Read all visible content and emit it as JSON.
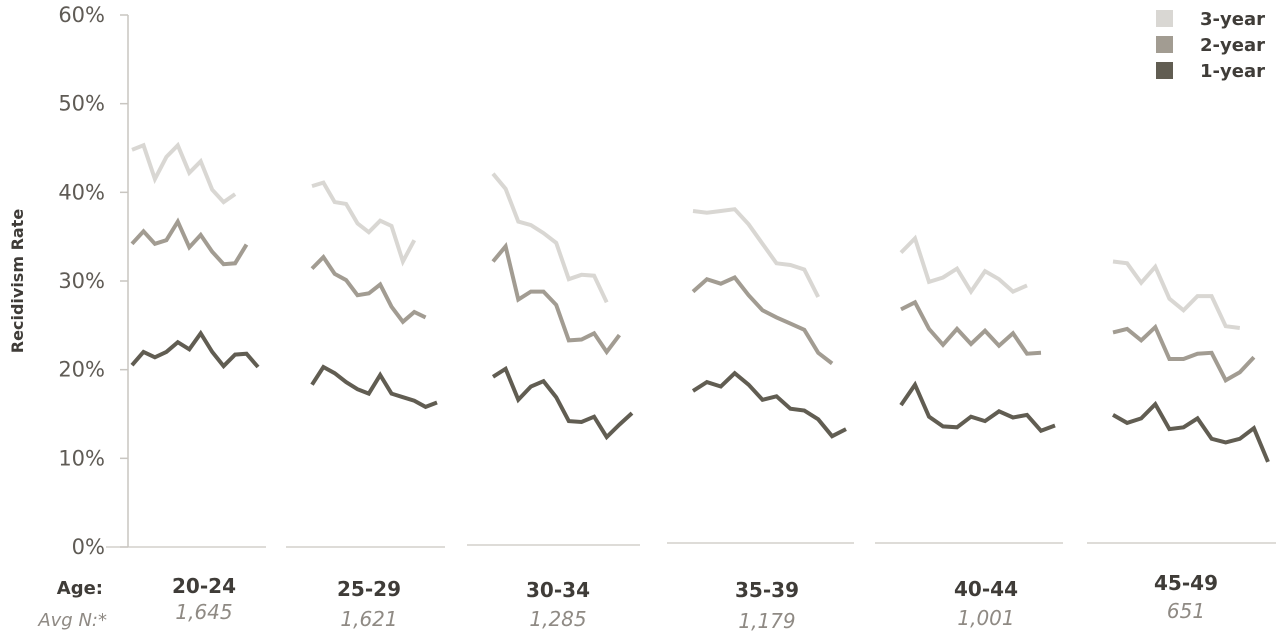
{
  "chart_data": {
    "type": "line",
    "ylabel": "Recidivism Rate",
    "yticks": [
      "0%",
      "10%",
      "20%",
      "30%",
      "40%",
      "50%",
      "60%"
    ],
    "ylim": [
      0,
      60
    ],
    "row_labels": {
      "age": "Age:",
      "avg_n": "Avg N:*"
    },
    "legend_position": "top-right",
    "series": [
      {
        "name": "3-year",
        "color": "#d9d7d3"
      },
      {
        "name": "2-year",
        "color": "#a29c92"
      },
      {
        "name": "1-year",
        "color": "#615d52"
      }
    ],
    "groups": [
      {
        "label": "20-24",
        "avg_n": "1,645",
        "values": {
          "3-year": [
            44.8,
            45.3,
            41.5,
            44.0,
            45.3,
            42.2,
            43.5,
            40.3,
            38.9,
            39.8
          ],
          "2-year": [
            34.2,
            35.6,
            34.2,
            34.6,
            36.7,
            33.8,
            35.2,
            33.3,
            31.9,
            32.0,
            34.1
          ],
          "1-year": [
            20.5,
            22.0,
            21.4,
            22.0,
            23.1,
            22.3,
            24.1,
            22.0,
            20.4,
            21.7,
            21.8,
            20.3
          ]
        }
      },
      {
        "label": "25-29",
        "avg_n": "1,621",
        "values": {
          "3-year": [
            40.7,
            41.1,
            38.9,
            38.7,
            36.5,
            35.5,
            36.8,
            36.2,
            32.2,
            34.6
          ],
          "2-year": [
            31.4,
            32.7,
            30.8,
            30.1,
            28.4,
            28.6,
            29.6,
            27.1,
            25.4,
            26.5,
            25.9
          ],
          "1-year": [
            18.3,
            20.3,
            19.6,
            18.6,
            17.8,
            17.3,
            19.4,
            17.3,
            16.9,
            16.5,
            15.8,
            16.3
          ]
        }
      },
      {
        "label": "30-34",
        "avg_n": "1,285",
        "values": {
          "3-year": [
            42.1,
            40.4,
            36.7,
            36.3,
            35.4,
            34.3,
            30.2,
            30.7,
            30.6,
            27.6
          ],
          "2-year": [
            32.2,
            33.9,
            27.9,
            28.8,
            28.8,
            27.3,
            23.3,
            23.4,
            24.1,
            22.0,
            23.9
          ],
          "1-year": [
            19.2,
            20.1,
            16.6,
            18.1,
            18.7,
            16.9,
            14.2,
            14.1,
            14.7,
            12.4,
            13.8,
            15.1
          ]
        }
      },
      {
        "label": "35-39",
        "avg_n": "1,179",
        "values": {
          "3-year": [
            37.9,
            37.7,
            37.9,
            38.1,
            36.4,
            34.2,
            32.0,
            31.8,
            31.3,
            28.2
          ],
          "2-year": [
            28.8,
            30.2,
            29.7,
            30.4,
            28.4,
            26.7,
            25.9,
            25.2,
            24.5,
            21.9,
            20.7
          ],
          "1-year": [
            17.6,
            18.6,
            18.1,
            19.6,
            18.3,
            16.6,
            17.0,
            15.6,
            15.4,
            14.4,
            12.5,
            13.3
          ]
        }
      },
      {
        "label": "40-44",
        "avg_n": "1,001",
        "values": {
          "3-year": [
            33.2,
            34.8,
            29.9,
            30.4,
            31.4,
            28.8,
            31.1,
            30.2,
            28.8,
            29.5
          ],
          "2-year": [
            26.8,
            27.6,
            24.6,
            22.8,
            24.6,
            22.9,
            24.4,
            22.7,
            24.1,
            21.8,
            21.9
          ],
          "1-year": [
            16.0,
            18.3,
            14.7,
            13.6,
            13.5,
            14.7,
            14.2,
            15.3,
            14.6,
            14.9,
            13.1,
            13.7
          ]
        }
      },
      {
        "label": "45-49",
        "avg_n": "651",
        "values": {
          "3-year": [
            32.2,
            32.0,
            29.8,
            31.6,
            28.0,
            26.7,
            28.3,
            28.3,
            24.9,
            24.7
          ],
          "2-year": [
            24.2,
            24.6,
            23.3,
            24.8,
            21.2,
            21.2,
            21.8,
            21.9,
            18.8,
            19.7,
            21.4
          ],
          "1-year": [
            14.9,
            14.0,
            14.5,
            16.1,
            13.3,
            13.5,
            14.5,
            12.2,
            11.8,
            12.2,
            13.4,
            9.6
          ]
        }
      }
    ]
  }
}
